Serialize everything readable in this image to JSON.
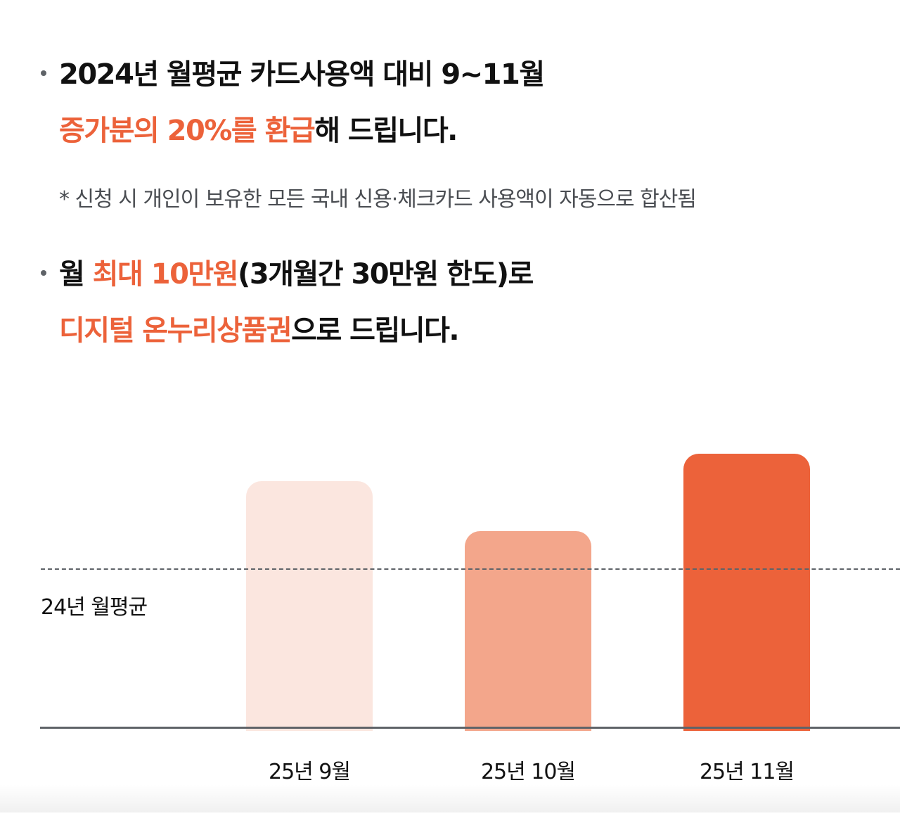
{
  "headline1": {
    "line1": "2024년 월평균 카드사용액 대비 9~11월",
    "line2_highlight": "증가분의 20%를 환급",
    "line2_rest": "해 드립니다."
  },
  "note": "* 신청 시 개인이 보유한 모든 국내 신용·체크카드 사용액이 자동으로 합산됨",
  "headline2": {
    "line1_prefix": "월 ",
    "line1_highlight": "최대 10만원",
    "line1_rest": "(3개월간 30만원 한도)로",
    "line2_highlight": "디지털 온누리상품권",
    "line2_rest": "으로 드립니다."
  },
  "colors": {
    "accent": "#ec623a",
    "bar_sep": "#fbe6df",
    "bar_oct": "#f3a68b",
    "bar_nov": "#ec623a",
    "axis": "#5f6368"
  },
  "chart_data": {
    "type": "bar",
    "title": "",
    "categories": [
      "25년 9월",
      "25년 10월",
      "25년 11월"
    ],
    "values": [
      125,
      100,
      139
    ],
    "reference_line": {
      "label": "24년 월평균",
      "value": 80
    },
    "xlabel": "",
    "ylabel": "",
    "ylim": [
      0,
      150
    ],
    "grid": false,
    "legend": null,
    "note": "Relative heights only; no numeric axis shown. Values are proportional to bar pixel heights (24년 월평균 reference = dashed line)."
  },
  "chart": {
    "avg_label": "24년 월평균",
    "xlabels": [
      "25년 9월",
      "25년 10월",
      "25년 11월"
    ]
  }
}
